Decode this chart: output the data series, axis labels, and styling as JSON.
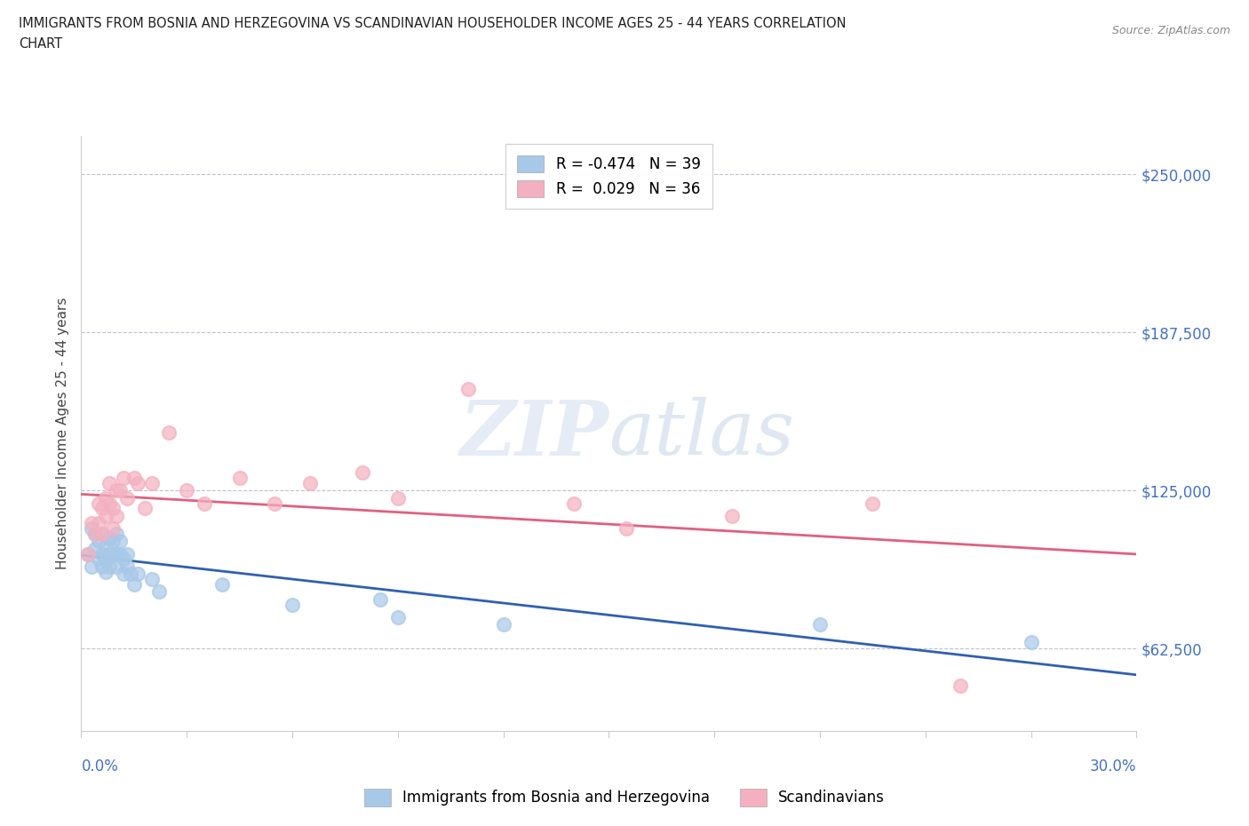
{
  "title_line1": "IMMIGRANTS FROM BOSNIA AND HERZEGOVINA VS SCANDINAVIAN HOUSEHOLDER INCOME AGES 25 - 44 YEARS CORRELATION",
  "title_line2": "CHART",
  "source": "Source: ZipAtlas.com",
  "ylabel": "Householder Income Ages 25 - 44 years",
  "legend1_label": "Immigrants from Bosnia and Herzegovina",
  "legend2_label": "Scandinavians",
  "r1": -0.474,
  "n1": 39,
  "r2": 0.029,
  "n2": 36,
  "color_blue": "#a8c8e8",
  "color_pink": "#f4b0c0",
  "line_color_blue": "#3060b0",
  "line_color_pink": "#e06080",
  "xlim": [
    0.0,
    0.3
  ],
  "ylim": [
    30000,
    265000
  ],
  "yticks": [
    62500,
    125000,
    187500,
    250000
  ],
  "ytick_labels": [
    "$62,500",
    "$125,000",
    "$187,500",
    "$250,000"
  ],
  "bosnia_x": [
    0.002,
    0.003,
    0.003,
    0.004,
    0.004,
    0.005,
    0.005,
    0.006,
    0.006,
    0.006,
    0.007,
    0.007,
    0.007,
    0.008,
    0.008,
    0.008,
    0.009,
    0.009,
    0.01,
    0.01,
    0.01,
    0.011,
    0.011,
    0.012,
    0.012,
    0.013,
    0.013,
    0.014,
    0.015,
    0.016,
    0.02,
    0.022,
    0.04,
    0.06,
    0.085,
    0.09,
    0.12,
    0.21,
    0.27
  ],
  "bosnia_y": [
    100000,
    95000,
    110000,
    102000,
    108000,
    98000,
    105000,
    100000,
    95000,
    108000,
    103000,
    98000,
    93000,
    106000,
    100000,
    95000,
    100000,
    105000,
    95000,
    100000,
    108000,
    100000,
    105000,
    98000,
    92000,
    100000,
    95000,
    92000,
    88000,
    92000,
    90000,
    85000,
    88000,
    80000,
    82000,
    75000,
    72000,
    72000,
    65000
  ],
  "scandi_x": [
    0.002,
    0.003,
    0.004,
    0.005,
    0.005,
    0.006,
    0.006,
    0.007,
    0.007,
    0.008,
    0.008,
    0.009,
    0.009,
    0.01,
    0.01,
    0.011,
    0.012,
    0.013,
    0.015,
    0.016,
    0.018,
    0.02,
    0.025,
    0.03,
    0.035,
    0.045,
    0.055,
    0.065,
    0.08,
    0.09,
    0.11,
    0.14,
    0.155,
    0.185,
    0.225,
    0.25
  ],
  "scandi_y": [
    100000,
    112000,
    108000,
    120000,
    112000,
    118000,
    108000,
    122000,
    115000,
    120000,
    128000,
    118000,
    110000,
    125000,
    115000,
    125000,
    130000,
    122000,
    130000,
    128000,
    118000,
    128000,
    148000,
    125000,
    120000,
    130000,
    120000,
    128000,
    132000,
    122000,
    165000,
    120000,
    110000,
    115000,
    120000,
    48000
  ]
}
